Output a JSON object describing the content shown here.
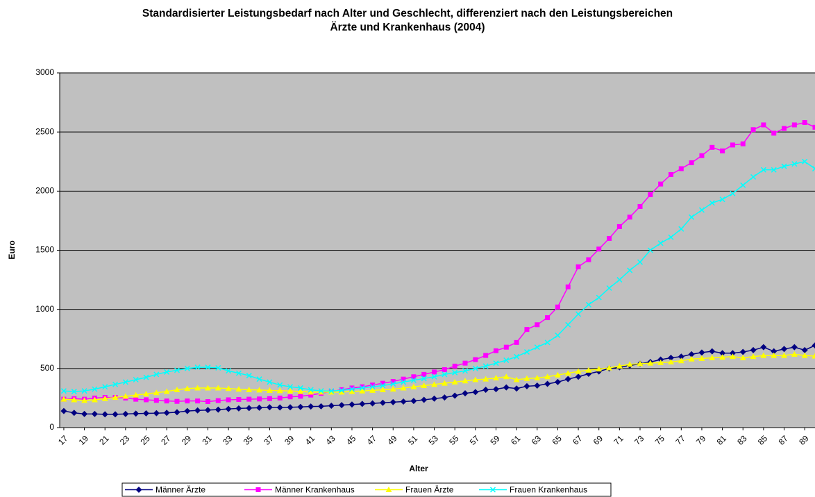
{
  "chart_data": {
    "type": "line",
    "title": "Standardisierter Leistungsbedarf nach Alter und Geschlecht, differenziert nach den Leistungsbereichen Ärzte und Krankenhaus (2004)",
    "xlabel": "Alter",
    "ylabel": "Euro",
    "x": [
      17,
      18,
      19,
      20,
      21,
      22,
      23,
      24,
      25,
      26,
      27,
      28,
      29,
      30,
      31,
      32,
      33,
      34,
      35,
      36,
      37,
      38,
      39,
      40,
      41,
      42,
      43,
      44,
      45,
      46,
      47,
      48,
      49,
      50,
      51,
      52,
      53,
      54,
      55,
      56,
      57,
      58,
      59,
      60,
      61,
      62,
      63,
      64,
      65,
      66,
      67,
      68,
      69,
      70,
      71,
      72,
      73,
      74,
      75,
      76,
      77,
      78,
      79,
      80,
      81,
      82,
      83,
      84,
      85,
      86,
      87,
      88,
      89,
      90
    ],
    "xlim": [
      16.6,
      90
    ],
    "xticks": [
      17,
      19,
      21,
      23,
      25,
      27,
      29,
      31,
      33,
      35,
      37,
      39,
      41,
      43,
      45,
      47,
      49,
      51,
      53,
      55,
      57,
      59,
      61,
      63,
      65,
      67,
      69,
      71,
      73,
      75,
      77,
      79,
      81,
      83,
      85,
      87,
      89
    ],
    "ylim": [
      0,
      3000
    ],
    "yticks": [
      0,
      500,
      1000,
      1500,
      2000,
      2500,
      3000
    ],
    "grid": true,
    "legend": "bottom",
    "series": [
      {
        "name": "Männer Ärzte",
        "color": "#000080",
        "marker": "diamond",
        "values": [
          140,
          125,
          115,
          115,
          112,
          112,
          115,
          118,
          120,
          122,
          125,
          130,
          140,
          145,
          148,
          152,
          158,
          162,
          165,
          168,
          172,
          170,
          172,
          175,
          178,
          180,
          185,
          190,
          195,
          200,
          205,
          210,
          215,
          220,
          225,
          235,
          245,
          255,
          270,
          290,
          300,
          320,
          325,
          340,
          330,
          350,
          355,
          370,
          385,
          410,
          430,
          455,
          475,
          500,
          510,
          525,
          540,
          555,
          575,
          590,
          600,
          620,
          635,
          645,
          630,
          630,
          640,
          655,
          680,
          645,
          665,
          680,
          655,
          695
        ]
      },
      {
        "name": "Männer Krankenhaus",
        "color": "#ff00ff",
        "marker": "square",
        "values": [
          240,
          245,
          240,
          250,
          255,
          255,
          250,
          240,
          235,
          230,
          225,
          222,
          225,
          225,
          220,
          228,
          235,
          238,
          240,
          242,
          245,
          250,
          260,
          265,
          275,
          290,
          305,
          320,
          335,
          345,
          360,
          375,
          390,
          410,
          430,
          450,
          470,
          490,
          520,
          545,
          575,
          610,
          650,
          680,
          720,
          830,
          870,
          930,
          1020,
          1190,
          1360,
          1420,
          1510,
          1600,
          1700,
          1780,
          1870,
          1970,
          2060,
          2140,
          2190,
          2240,
          2300,
          2370,
          2340,
          2390,
          2400,
          2520,
          2560,
          2490,
          2530,
          2560,
          2580,
          2540
        ]
      },
      {
        "name": "Frauen Ärzte",
        "color": "#ffff00",
        "marker": "triangle",
        "values": [
          240,
          235,
          230,
          235,
          245,
          255,
          265,
          275,
          285,
          295,
          305,
          320,
          330,
          335,
          335,
          335,
          330,
          325,
          320,
          318,
          315,
          312,
          310,
          305,
          300,
          300,
          300,
          300,
          305,
          310,
          315,
          320,
          325,
          335,
          345,
          355,
          365,
          375,
          385,
          395,
          405,
          410,
          420,
          430,
          405,
          415,
          420,
          430,
          445,
          460,
          475,
          485,
          495,
          505,
          520,
          535,
          540,
          545,
          550,
          555,
          565,
          580,
          585,
          590,
          595,
          600,
          590,
          600,
          610,
          610,
          610,
          620,
          610,
          605
        ]
      },
      {
        "name": "Frauen Krankenhaus",
        "color": "#00ffff",
        "marker": "cross",
        "values": [
          310,
          305,
          310,
          325,
          345,
          365,
          385,
          405,
          425,
          450,
          470,
          485,
          500,
          510,
          510,
          505,
          480,
          460,
          440,
          410,
          385,
          360,
          345,
          335,
          320,
          310,
          310,
          315,
          325,
          335,
          345,
          355,
          370,
          385,
          400,
          415,
          430,
          450,
          465,
          480,
          500,
          520,
          545,
          570,
          600,
          640,
          680,
          720,
          780,
          870,
          960,
          1040,
          1100,
          1180,
          1250,
          1330,
          1400,
          1500,
          1560,
          1610,
          1680,
          1780,
          1840,
          1900,
          1930,
          1980,
          2050,
          2120,
          2180,
          2180,
          2210,
          2230,
          2250,
          2190
        ]
      }
    ]
  }
}
